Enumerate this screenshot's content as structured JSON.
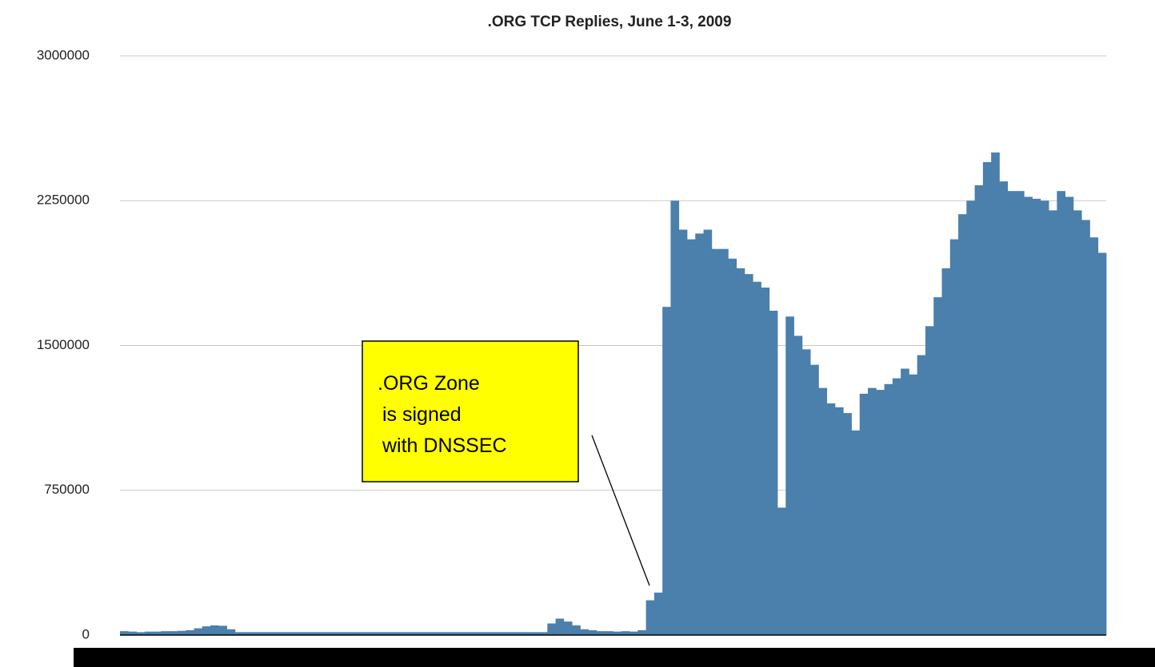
{
  "chart_data": {
    "type": "bar",
    "title": ".ORG TCP Replies, June 1-3, 2009",
    "color": "#4b7fac",
    "grid": true,
    "ylim": [
      0,
      3000000
    ],
    "yticks": [
      0,
      750000,
      1500000,
      2250000,
      3000000
    ],
    "annotation": [
      ".ORG Zone",
      "is signed",
      "with DNSSEC"
    ],
    "values": [
      20000,
      18000,
      15000,
      18000,
      18000,
      20000,
      20000,
      22000,
      25000,
      35000,
      45000,
      50000,
      48000,
      30000,
      15000,
      15000,
      15000,
      15000,
      15000,
      15000,
      15000,
      15000,
      15000,
      15000,
      15000,
      15000,
      15000,
      15000,
      15000,
      15000,
      15000,
      15000,
      15000,
      15000,
      15000,
      15000,
      15000,
      15000,
      15000,
      15000,
      15000,
      15000,
      15000,
      15000,
      15000,
      15000,
      15000,
      15000,
      15000,
      15000,
      15000,
      15000,
      60000,
      85000,
      70000,
      50000,
      30000,
      25000,
      20000,
      20000,
      18000,
      20000,
      18000,
      25000,
      180000,
      220000,
      1700000,
      2250000,
      2100000,
      2050000,
      2080000,
      2100000,
      2000000,
      2000000,
      1950000,
      1900000,
      1870000,
      1830000,
      1800000,
      1680000,
      660000,
      1650000,
      1550000,
      1480000,
      1400000,
      1280000,
      1200000,
      1180000,
      1150000,
      1060000,
      1250000,
      1280000,
      1270000,
      1300000,
      1330000,
      1380000,
      1350000,
      1450000,
      1600000,
      1750000,
      1900000,
      2050000,
      2180000,
      2250000,
      2330000,
      2450000,
      2500000,
      2350000,
      2300000,
      2300000,
      2270000,
      2260000,
      2250000,
      2200000,
      2300000,
      2270000,
      2200000,
      2150000,
      2060000,
      1980000
    ]
  }
}
